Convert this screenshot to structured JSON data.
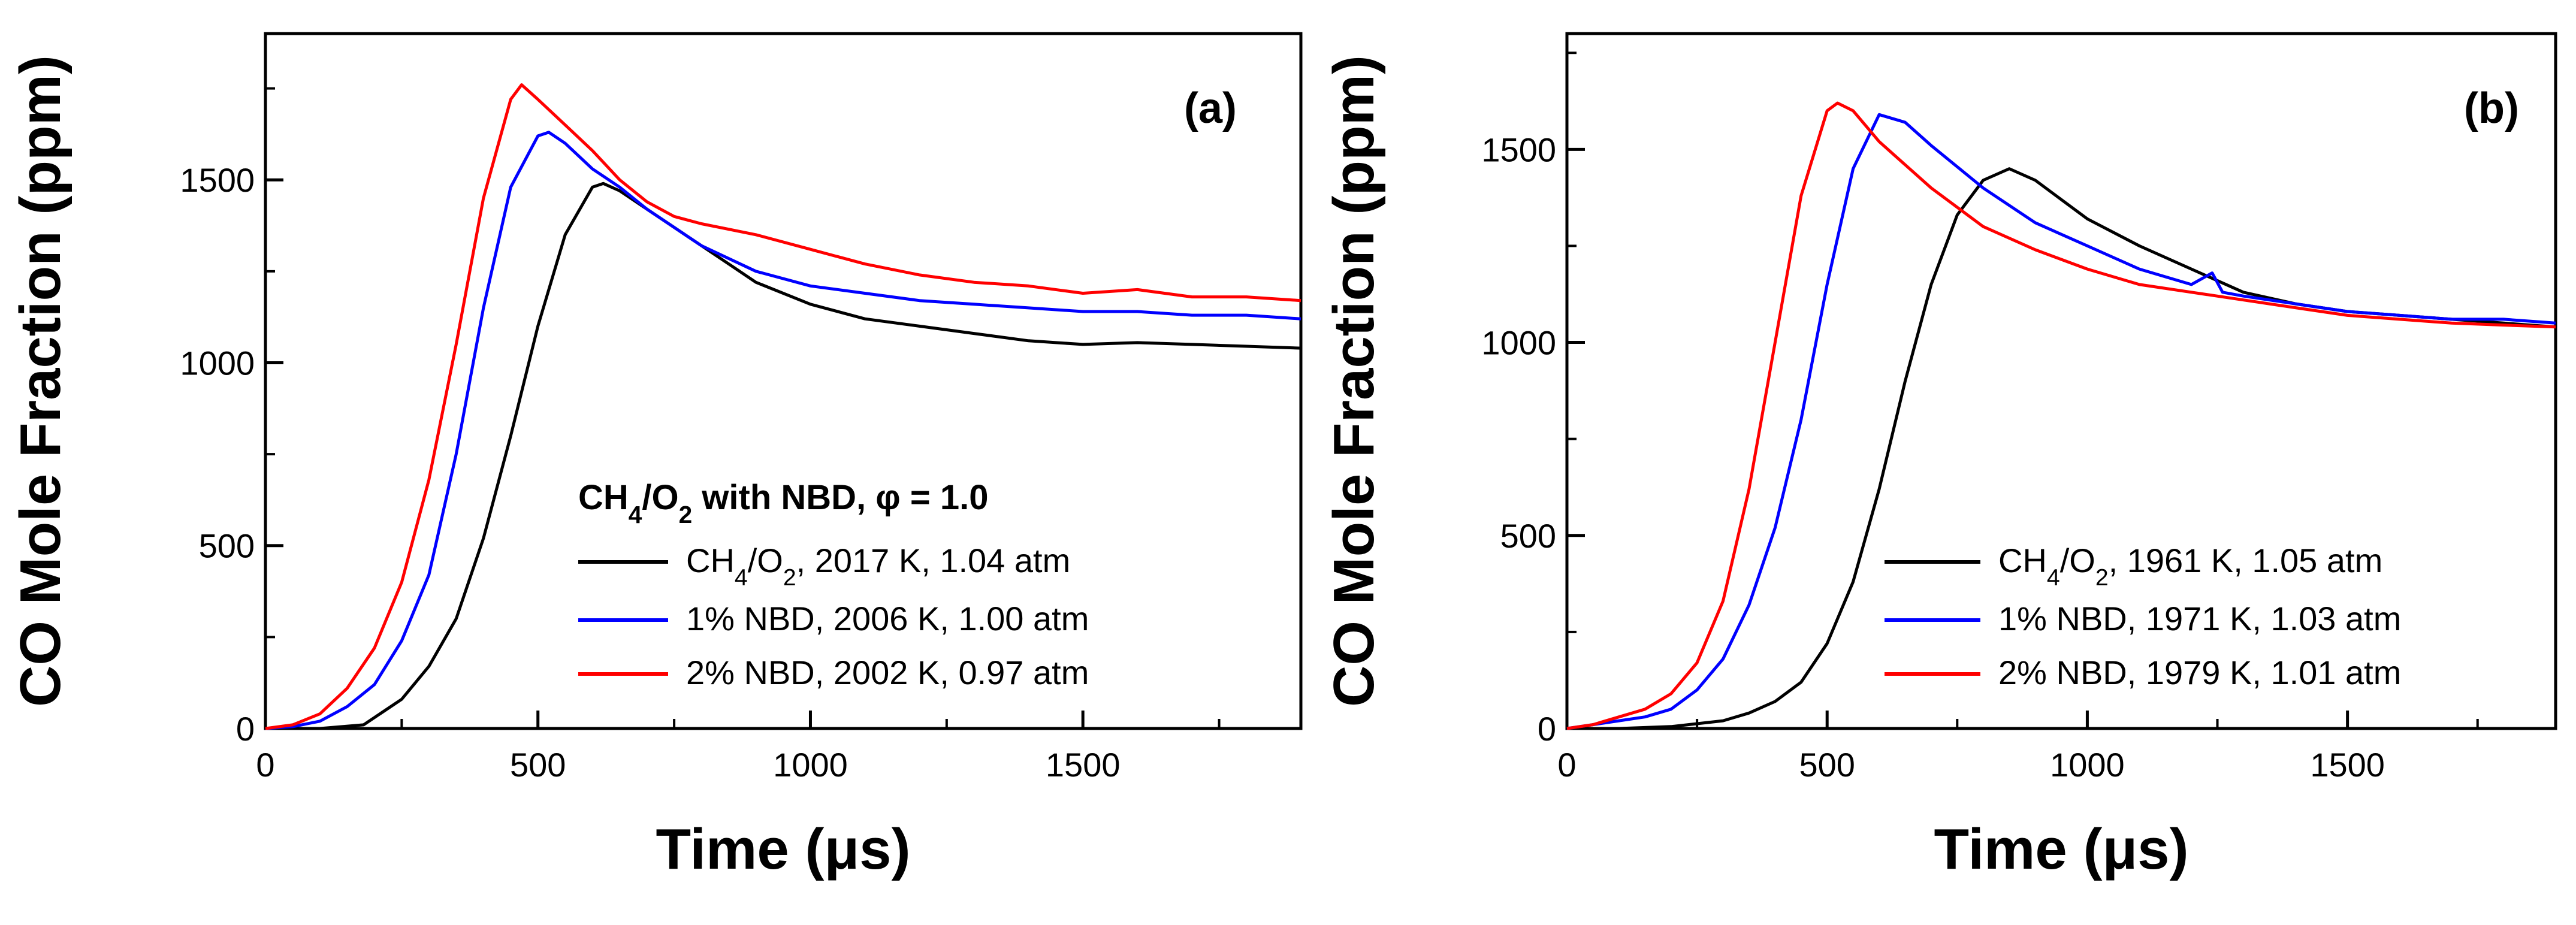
{
  "chart_data": [
    {
      "type": "line",
      "panel_label": "(a)",
      "xlabel": "Time (μs)",
      "ylabel": "CO Mole Fraction (ppm)",
      "xlim": [
        0,
        1900
      ],
      "ylim": [
        0,
        1900
      ],
      "x_ticks": [
        0,
        500,
        1000,
        1500
      ],
      "y_ticks": [
        0,
        500,
        1000,
        1500
      ],
      "legend": {
        "title": "CH4/O2 with NBD, φ = 1.0",
        "placement": "lower-right"
      },
      "series": [
        {
          "name": "CH4/O2, 2017 K, 1.04 atm",
          "color": "#000000",
          "x": [
            0,
            100,
            180,
            250,
            300,
            350,
            400,
            450,
            500,
            550,
            600,
            620,
            650,
            700,
            750,
            800,
            850,
            900,
            1000,
            1100,
            1200,
            1300,
            1400,
            1500,
            1600,
            1700,
            1800,
            1900
          ],
          "y": [
            0,
            0,
            10,
            80,
            170,
            300,
            520,
            800,
            1100,
            1350,
            1480,
            1490,
            1470,
            1420,
            1370,
            1320,
            1270,
            1220,
            1160,
            1120,
            1100,
            1080,
            1060,
            1050,
            1055,
            1050,
            1045,
            1040
          ]
        },
        {
          "name": "1% NBD, 2006 K, 1.00 atm",
          "color": "#0000ff",
          "x": [
            0,
            50,
            100,
            150,
            200,
            250,
            300,
            350,
            400,
            450,
            500,
            520,
            550,
            600,
            650,
            700,
            750,
            800,
            900,
            1000,
            1100,
            1200,
            1300,
            1400,
            1500,
            1600,
            1700,
            1800,
            1900
          ],
          "y": [
            0,
            5,
            20,
            60,
            120,
            240,
            420,
            750,
            1150,
            1480,
            1620,
            1630,
            1600,
            1530,
            1480,
            1420,
            1370,
            1320,
            1250,
            1210,
            1190,
            1170,
            1160,
            1150,
            1140,
            1140,
            1130,
            1130,
            1120
          ]
        },
        {
          "name": "2% NBD, 2002 K, 0.97 atm",
          "color": "#ff0000",
          "x": [
            0,
            50,
            100,
            150,
            200,
            250,
            300,
            350,
            400,
            450,
            470,
            500,
            550,
            600,
            650,
            700,
            750,
            800,
            900,
            1000,
            1100,
            1200,
            1300,
            1400,
            1500,
            1600,
            1700,
            1800,
            1900
          ],
          "y": [
            0,
            10,
            40,
            110,
            220,
            400,
            680,
            1050,
            1450,
            1720,
            1760,
            1720,
            1650,
            1580,
            1500,
            1440,
            1400,
            1380,
            1350,
            1310,
            1270,
            1240,
            1220,
            1210,
            1190,
            1200,
            1180,
            1180,
            1170
          ]
        }
      ]
    },
    {
      "type": "line",
      "panel_label": "(b)",
      "xlabel": "Time (μs)",
      "ylabel": "CO Mole Fraction (ppm)",
      "xlim": [
        0,
        1900
      ],
      "ylim": [
        0,
        1800
      ],
      "x_ticks": [
        0,
        500,
        1000,
        1500
      ],
      "y_ticks": [
        0,
        500,
        1000,
        1500
      ],
      "legend": {
        "placement": "lower-right"
      },
      "series": [
        {
          "name": "CH4/O2, 1961 K, 1.05 atm",
          "color": "#000000",
          "x": [
            0,
            100,
            200,
            300,
            350,
            400,
            450,
            500,
            550,
            600,
            650,
            700,
            750,
            800,
            850,
            900,
            950,
            1000,
            1100,
            1200,
            1300,
            1400,
            1500,
            1600,
            1700,
            1800,
            1900
          ],
          "y": [
            0,
            0,
            5,
            20,
            40,
            70,
            120,
            220,
            380,
            620,
            900,
            1150,
            1330,
            1420,
            1450,
            1420,
            1370,
            1320,
            1250,
            1190,
            1130,
            1100,
            1080,
            1070,
            1060,
            1050,
            1040
          ]
        },
        {
          "name": "1% NBD, 1971 K, 1.03 atm",
          "color": "#0000ff",
          "x": [
            0,
            50,
            100,
            150,
            200,
            250,
            300,
            350,
            400,
            450,
            500,
            550,
            600,
            650,
            700,
            800,
            900,
            1000,
            1100,
            1200,
            1240,
            1260,
            1300,
            1400,
            1500,
            1600,
            1700,
            1800,
            1900
          ],
          "y": [
            0,
            10,
            20,
            30,
            50,
            100,
            180,
            320,
            520,
            800,
            1150,
            1450,
            1590,
            1570,
            1510,
            1400,
            1310,
            1250,
            1190,
            1150,
            1180,
            1130,
            1120,
            1100,
            1080,
            1070,
            1060,
            1060,
            1050
          ]
        },
        {
          "name": "2% NBD, 1979 K, 1.01 atm",
          "color": "#ff0000",
          "x": [
            0,
            50,
            100,
            150,
            200,
            250,
            300,
            350,
            400,
            450,
            500,
            520,
            550,
            600,
            700,
            800,
            900,
            1000,
            1100,
            1200,
            1300,
            1400,
            1500,
            1600,
            1700,
            1800,
            1900
          ],
          "y": [
            0,
            10,
            30,
            50,
            90,
            170,
            330,
            620,
            1000,
            1380,
            1600,
            1620,
            1600,
            1520,
            1400,
            1300,
            1240,
            1190,
            1150,
            1130,
            1110,
            1090,
            1070,
            1060,
            1050,
            1045,
            1040
          ]
        }
      ]
    }
  ]
}
